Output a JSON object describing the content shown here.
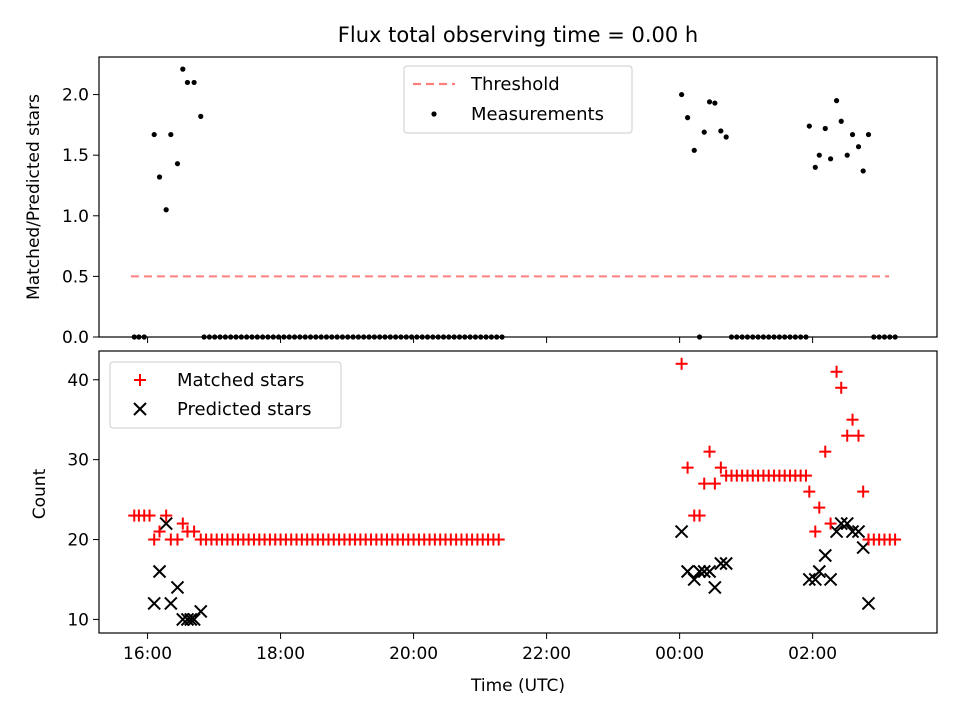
{
  "chart_data": [
    {
      "type": "scatter",
      "title": "Flux total observing time = 0.00 h",
      "xlabel": "",
      "ylabel": "Matched/Predicted stars",
      "xlim": [
        -0.73,
        11.87
      ],
      "ylim": [
        0,
        2.31
      ],
      "yticks": [
        0.0,
        0.5,
        1.0,
        1.5,
        2.0
      ],
      "ytick_labels": [
        "0.0",
        "0.5",
        "1.0",
        "1.5",
        "2.0"
      ],
      "legend": {
        "position": "top-center",
        "entries": [
          "Threshold",
          "Measurements"
        ]
      },
      "threshold": {
        "name": "Threshold",
        "value": 0.5,
        "x": [
          -0.25,
          11.15
        ],
        "color": "#ff7f7f"
      },
      "series": [
        {
          "name": "Measurements",
          "color": "#000000",
          "points": [
            [
              -0.2,
              0.0
            ],
            [
              -0.13,
              0.0
            ],
            [
              -0.05,
              0.0
            ],
            [
              0.1,
              1.67
            ],
            [
              0.18,
              1.32
            ],
            [
              0.28,
              1.05
            ],
            [
              0.35,
              1.67
            ],
            [
              0.45,
              1.43
            ],
            [
              0.53,
              2.21
            ],
            [
              0.6,
              2.1
            ],
            [
              0.7,
              2.1
            ],
            [
              0.8,
              1.82
            ],
            [
              0.85,
              0.0
            ],
            [
              0.93,
              0.0
            ],
            [
              1.01,
              0.0
            ],
            [
              1.09,
              0.0
            ],
            [
              1.17,
              0.0
            ],
            [
              1.25,
              0.0
            ],
            [
              1.33,
              0.0
            ],
            [
              1.41,
              0.0
            ],
            [
              1.49,
              0.0
            ],
            [
              1.57,
              0.0
            ],
            [
              1.65,
              0.0
            ],
            [
              1.73,
              0.0
            ],
            [
              1.81,
              0.0
            ],
            [
              1.89,
              0.0
            ],
            [
              1.97,
              0.0
            ],
            [
              2.05,
              0.0
            ],
            [
              2.13,
              0.0
            ],
            [
              2.21,
              0.0
            ],
            [
              2.29,
              0.0
            ],
            [
              2.37,
              0.0
            ],
            [
              2.45,
              0.0
            ],
            [
              2.53,
              0.0
            ],
            [
              2.61,
              0.0
            ],
            [
              2.69,
              0.0
            ],
            [
              2.77,
              0.0
            ],
            [
              2.85,
              0.0
            ],
            [
              2.93,
              0.0
            ],
            [
              3.01,
              0.0
            ],
            [
              3.09,
              0.0
            ],
            [
              3.17,
              0.0
            ],
            [
              3.25,
              0.0
            ],
            [
              3.33,
              0.0
            ],
            [
              3.41,
              0.0
            ],
            [
              3.49,
              0.0
            ],
            [
              3.57,
              0.0
            ],
            [
              3.65,
              0.0
            ],
            [
              3.73,
              0.0
            ],
            [
              3.81,
              0.0
            ],
            [
              3.89,
              0.0
            ],
            [
              3.97,
              0.0
            ],
            [
              4.05,
              0.0
            ],
            [
              4.13,
              0.0
            ],
            [
              4.21,
              0.0
            ],
            [
              4.29,
              0.0
            ],
            [
              4.37,
              0.0
            ],
            [
              4.45,
              0.0
            ],
            [
              4.53,
              0.0
            ],
            [
              4.61,
              0.0
            ],
            [
              4.69,
              0.0
            ],
            [
              4.77,
              0.0
            ],
            [
              4.85,
              0.0
            ],
            [
              4.93,
              0.0
            ],
            [
              5.01,
              0.0
            ],
            [
              5.09,
              0.0
            ],
            [
              5.17,
              0.0
            ],
            [
              5.25,
              0.0
            ],
            [
              5.33,
              0.0
            ],
            [
              8.03,
              2.0
            ],
            [
              8.12,
              1.81
            ],
            [
              8.22,
              1.54
            ],
            [
              8.3,
              0.0
            ],
            [
              8.37,
              1.69
            ],
            [
              8.45,
              1.94
            ],
            [
              8.53,
              1.93
            ],
            [
              8.62,
              1.7
            ],
            [
              8.7,
              1.65
            ],
            [
              8.78,
              0.0
            ],
            [
              8.86,
              0.0
            ],
            [
              8.94,
              0.0
            ],
            [
              9.02,
              0.0
            ],
            [
              9.1,
              0.0
            ],
            [
              9.18,
              0.0
            ],
            [
              9.26,
              0.0
            ],
            [
              9.34,
              0.0
            ],
            [
              9.42,
              0.0
            ],
            [
              9.5,
              0.0
            ],
            [
              9.58,
              0.0
            ],
            [
              9.66,
              0.0
            ],
            [
              9.74,
              0.0
            ],
            [
              9.82,
              0.0
            ],
            [
              9.9,
              0.0
            ],
            [
              9.95,
              1.74
            ],
            [
              10.04,
              1.4
            ],
            [
              10.1,
              1.5
            ],
            [
              10.19,
              1.72
            ],
            [
              10.27,
              1.47
            ],
            [
              10.36,
              1.95
            ],
            [
              10.43,
              1.78
            ],
            [
              10.52,
              1.5
            ],
            [
              10.6,
              1.67
            ],
            [
              10.69,
              1.57
            ],
            [
              10.76,
              1.37
            ],
            [
              10.84,
              1.67
            ],
            [
              10.92,
              0.0
            ],
            [
              11.0,
              0.0
            ],
            [
              11.08,
              0.0
            ],
            [
              11.16,
              0.0
            ],
            [
              11.24,
              0.0
            ]
          ]
        }
      ]
    },
    {
      "type": "scatter",
      "title": "",
      "xlabel": "Time (UTC)",
      "ylabel": "Count",
      "xlim": [
        -0.73,
        11.87
      ],
      "ylim": [
        8.3,
        43.6
      ],
      "yticks": [
        10,
        20,
        30,
        40
      ],
      "ytick_labels": [
        "10",
        "20",
        "30",
        "40"
      ],
      "xticks": [
        0,
        2,
        4,
        6,
        8,
        10
      ],
      "xtick_labels": [
        "16:00",
        "18:00",
        "20:00",
        "22:00",
        "00:00",
        "02:00"
      ],
      "legend": {
        "position": "top-left",
        "entries": [
          "Matched stars",
          "Predicted stars"
        ]
      },
      "series": [
        {
          "name": "Matched stars",
          "marker": "+",
          "color": "#ff0000",
          "points": [
            [
              -0.2,
              23
            ],
            [
              -0.13,
              23
            ],
            [
              -0.05,
              23
            ],
            [
              0.03,
              23
            ],
            [
              0.1,
              20
            ],
            [
              0.18,
              21
            ],
            [
              0.28,
              23
            ],
            [
              0.35,
              20
            ],
            [
              0.45,
              20
            ],
            [
              0.53,
              22
            ],
            [
              0.6,
              21
            ],
            [
              0.7,
              21
            ],
            [
              0.8,
              20
            ],
            [
              0.88,
              20
            ],
            [
              0.96,
              20
            ],
            [
              1.04,
              20
            ],
            [
              1.12,
              20
            ],
            [
              1.2,
              20
            ],
            [
              1.28,
              20
            ],
            [
              1.36,
              20
            ],
            [
              1.44,
              20
            ],
            [
              1.52,
              20
            ],
            [
              1.6,
              20
            ],
            [
              1.68,
              20
            ],
            [
              1.76,
              20
            ],
            [
              1.84,
              20
            ],
            [
              1.92,
              20
            ],
            [
              2.0,
              20
            ],
            [
              2.08,
              20
            ],
            [
              2.16,
              20
            ],
            [
              2.24,
              20
            ],
            [
              2.32,
              20
            ],
            [
              2.4,
              20
            ],
            [
              2.48,
              20
            ],
            [
              2.56,
              20
            ],
            [
              2.64,
              20
            ],
            [
              2.72,
              20
            ],
            [
              2.8,
              20
            ],
            [
              2.88,
              20
            ],
            [
              2.96,
              20
            ],
            [
              3.04,
              20
            ],
            [
              3.12,
              20
            ],
            [
              3.2,
              20
            ],
            [
              3.28,
              20
            ],
            [
              3.36,
              20
            ],
            [
              3.44,
              20
            ],
            [
              3.52,
              20
            ],
            [
              3.6,
              20
            ],
            [
              3.68,
              20
            ],
            [
              3.76,
              20
            ],
            [
              3.84,
              20
            ],
            [
              3.92,
              20
            ],
            [
              4.0,
              20
            ],
            [
              4.08,
              20
            ],
            [
              4.16,
              20
            ],
            [
              4.24,
              20
            ],
            [
              4.32,
              20
            ],
            [
              4.4,
              20
            ],
            [
              4.48,
              20
            ],
            [
              4.56,
              20
            ],
            [
              4.64,
              20
            ],
            [
              4.72,
              20
            ],
            [
              4.8,
              20
            ],
            [
              4.88,
              20
            ],
            [
              4.96,
              20
            ],
            [
              5.04,
              20
            ],
            [
              5.12,
              20
            ],
            [
              5.2,
              20
            ],
            [
              5.28,
              20
            ],
            [
              8.03,
              42
            ],
            [
              8.12,
              29
            ],
            [
              8.22,
              23
            ],
            [
              8.3,
              23
            ],
            [
              8.37,
              27
            ],
            [
              8.45,
              31
            ],
            [
              8.53,
              27
            ],
            [
              8.62,
              29
            ],
            [
              8.7,
              28
            ],
            [
              8.78,
              28
            ],
            [
              8.86,
              28
            ],
            [
              8.94,
              28
            ],
            [
              9.02,
              28
            ],
            [
              9.1,
              28
            ],
            [
              9.18,
              28
            ],
            [
              9.26,
              28
            ],
            [
              9.34,
              28
            ],
            [
              9.42,
              28
            ],
            [
              9.5,
              28
            ],
            [
              9.58,
              28
            ],
            [
              9.66,
              28
            ],
            [
              9.74,
              28
            ],
            [
              9.82,
              28
            ],
            [
              9.9,
              28
            ],
            [
              9.95,
              26
            ],
            [
              10.04,
              21
            ],
            [
              10.1,
              24
            ],
            [
              10.19,
              31
            ],
            [
              10.27,
              22
            ],
            [
              10.36,
              41
            ],
            [
              10.43,
              39
            ],
            [
              10.52,
              33
            ],
            [
              10.6,
              35
            ],
            [
              10.69,
              33
            ],
            [
              10.76,
              26
            ],
            [
              10.84,
              20
            ],
            [
              10.92,
              20
            ],
            [
              11.0,
              20
            ],
            [
              11.08,
              20
            ],
            [
              11.16,
              20
            ],
            [
              11.24,
              20
            ]
          ]
        },
        {
          "name": "Predicted stars",
          "marker": "x",
          "color": "#000000",
          "points": [
            [
              0.1,
              12
            ],
            [
              0.18,
              16
            ],
            [
              0.28,
              22
            ],
            [
              0.35,
              12
            ],
            [
              0.45,
              14
            ],
            [
              0.53,
              10
            ],
            [
              0.6,
              10
            ],
            [
              0.65,
              10
            ],
            [
              0.7,
              10
            ],
            [
              0.8,
              11
            ],
            [
              8.03,
              21
            ],
            [
              8.12,
              16
            ],
            [
              8.22,
              15
            ],
            [
              8.3,
              16
            ],
            [
              8.37,
              16
            ],
            [
              8.45,
              16
            ],
            [
              8.53,
              14
            ],
            [
              8.62,
              17
            ],
            [
              8.7,
              17
            ],
            [
              9.95,
              15
            ],
            [
              10.04,
              15
            ],
            [
              10.1,
              16
            ],
            [
              10.19,
              18
            ],
            [
              10.27,
              15
            ],
            [
              10.36,
              21
            ],
            [
              10.43,
              22
            ],
            [
              10.52,
              22
            ],
            [
              10.6,
              21
            ],
            [
              10.69,
              21
            ],
            [
              10.76,
              19
            ],
            [
              10.84,
              12
            ]
          ]
        }
      ]
    }
  ]
}
